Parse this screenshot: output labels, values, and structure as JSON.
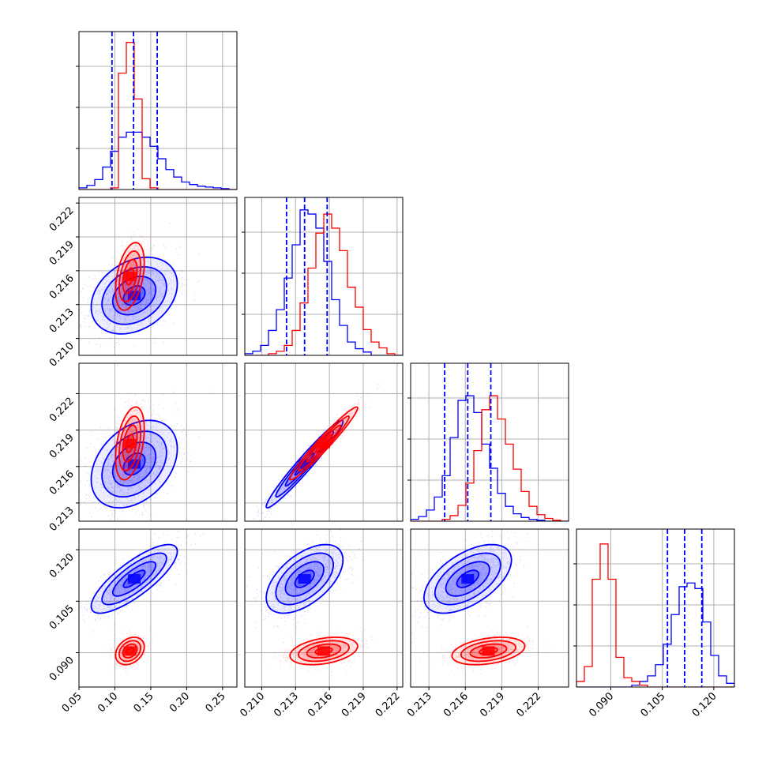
{
  "chart_data": {
    "type": "corner",
    "grid": true,
    "series": [
      {
        "name": "",
        "color": "#0000ff"
      },
      {
        "name": "",
        "color": "#ff0000"
      }
    ],
    "parameters": [
      {
        "range": [
          0.05,
          0.27
        ],
        "ticks": [
          0.05,
          0.1,
          0.15,
          0.2,
          0.25
        ],
        "tick_labels": [
          "0.05",
          "0.10",
          "0.15",
          "0.20",
          "0.25"
        ]
      },
      {
        "range": [
          0.2085,
          0.2225
        ],
        "ticks": [
          0.21,
          0.213,
          0.216,
          0.219,
          0.222
        ],
        "tick_labels": [
          "0.210",
          "0.213",
          "0.216",
          "0.219",
          "0.222"
        ]
      },
      {
        "range": [
          0.2115,
          0.2245
        ],
        "ticks": [
          0.213,
          0.216,
          0.219,
          0.222
        ],
        "tick_labels": [
          "0.213",
          "0.216",
          "0.219",
          "0.222"
        ]
      },
      {
        "range": [
          0.08,
          0.126
        ],
        "ticks": [
          0.09,
          0.105,
          0.12
        ],
        "tick_labels": [
          "0.090",
          "0.105",
          "0.120"
        ]
      }
    ],
    "histograms": [
      {
        "param": 0,
        "edges": [
          0.05,
          0.061,
          0.072,
          0.083,
          0.094,
          0.105,
          0.116,
          0.127,
          0.138,
          0.149,
          0.16,
          0.171,
          0.182,
          0.193,
          0.204,
          0.215,
          0.226,
          0.237,
          0.248,
          0.259,
          0.27
        ],
        "series": [
          {
            "color": "#0000ff",
            "values": [
              2,
              5,
              12,
              27,
              46,
              63,
              69,
              69,
              63,
              52,
              37,
              24,
              15,
              9,
              6,
              4,
              3,
              2,
              1,
              0
            ]
          },
          {
            "color": "#ff0000",
            "values": [
              0,
              0,
              0,
              0,
              2,
              140,
              177,
              109,
              13,
              2,
              0,
              0,
              0,
              0,
              0,
              0,
              0,
              0,
              0,
              0
            ]
          }
        ],
        "quantiles": [
          0.096,
          0.126,
          0.159
        ],
        "ymax": 190
      },
      {
        "param": 1,
        "edges": [
          0.2085,
          0.2092,
          0.2099,
          0.2106,
          0.2113,
          0.212,
          0.2127,
          0.2134,
          0.2141,
          0.2148,
          0.2155,
          0.2162,
          0.2169,
          0.2176,
          0.2183,
          0.219,
          0.2197,
          0.2204,
          0.2211,
          0.2218,
          0.2225
        ],
        "series": [
          {
            "color": "#0000ff",
            "values": [
              2,
              5,
              12,
              30,
              55,
              93,
              133,
              175,
              170,
              153,
              113,
              67,
              36,
              16,
              8,
              4,
              0,
              0,
              0,
              0
            ]
          },
          {
            "color": "#ff0000",
            "values": [
              0,
              0,
              0,
              2,
              5,
              12,
              30,
              63,
              105,
              147,
              170,
              153,
              126,
              82,
              58,
              31,
              16,
              9,
              2,
              0
            ]
          }
        ],
        "quantiles": [
          0.2122,
          0.2138,
          0.2158
        ],
        "ymax": 190
      },
      {
        "param": 2,
        "edges": [
          0.2115,
          0.21215,
          0.2128,
          0.21345,
          0.2141,
          0.21475,
          0.2154,
          0.21605,
          0.2167,
          0.21735,
          0.218,
          0.21865,
          0.2193,
          0.21995,
          0.2206,
          0.22125,
          0.2219,
          0.22255,
          0.2232,
          0.22385,
          0.2245
        ],
        "series": [
          {
            "color": "#0000ff",
            "values": [
              2,
              5,
              12,
              26,
              49,
              90,
              130,
              135,
              117,
              83,
              57,
              30,
              16,
              8,
              4,
              2,
              1,
              0,
              0,
              0
            ]
          },
          {
            "color": "#ff0000",
            "values": [
              0,
              0,
              0,
              0,
              2,
              6,
              17,
              41,
              76,
              120,
              135,
              110,
              83,
              56,
              32,
              16,
              7,
              3,
              1,
              0
            ]
          }
        ],
        "quantiles": [
          0.2143,
          0.2162,
          0.2181
        ],
        "ymax": 170
      },
      {
        "param": 3,
        "edges": [
          0.08,
          0.0823,
          0.0846,
          0.0869,
          0.0892,
          0.0915,
          0.0938,
          0.0961,
          0.0984,
          0.1007,
          0.103,
          0.1053,
          0.1076,
          0.1099,
          0.1122,
          0.1145,
          0.1168,
          0.1191,
          0.1214,
          0.1237,
          0.126
        ],
        "series": [
          {
            "color": "#0000ff",
            "values": [
              0,
              0,
              0,
              0,
              0,
              0,
              0,
              1,
              3,
              6,
              12,
              23,
              39,
              54,
              56,
              53,
              35,
              17,
              6,
              2
            ]
          },
          {
            "color": "#ff0000",
            "values": [
              3,
              11,
              58,
              77,
              58,
              16,
              5,
              3,
              1,
              0,
              0,
              0,
              0,
              0,
              0,
              0,
              0,
              0,
              0,
              0
            ]
          }
        ],
        "quantiles": [
          0.1065,
          0.1115,
          0.1165
        ],
        "ymax": 85
      }
    ],
    "distributions": [
      {
        "color": "#0000ff",
        "mean": [
          0.127,
          0.2138,
          0.2162,
          0.1115
        ],
        "sd": [
          0.03,
          0.0017,
          0.0018,
          0.005
        ],
        "corr": [
          [
            0,
            1,
            0.3
          ],
          [
            0,
            2,
            0.35
          ],
          [
            0,
            3,
            0.8
          ],
          [
            1,
            2,
            0.97
          ],
          [
            1,
            3,
            0.55
          ],
          [
            2,
            3,
            0.55
          ]
        ]
      },
      {
        "color": "#ff0000",
        "mean": [
          0.121,
          0.2155,
          0.2179,
          0.0905
        ],
        "sd": [
          0.01,
          0.0015,
          0.0015,
          0.002
        ],
        "corr": [
          [
            0,
            1,
            0.4
          ],
          [
            0,
            2,
            0.4
          ],
          [
            0,
            3,
            0.3
          ],
          [
            1,
            2,
            0.97
          ],
          [
            1,
            3,
            0.35
          ],
          [
            2,
            3,
            0.35
          ]
        ]
      }
    ]
  }
}
